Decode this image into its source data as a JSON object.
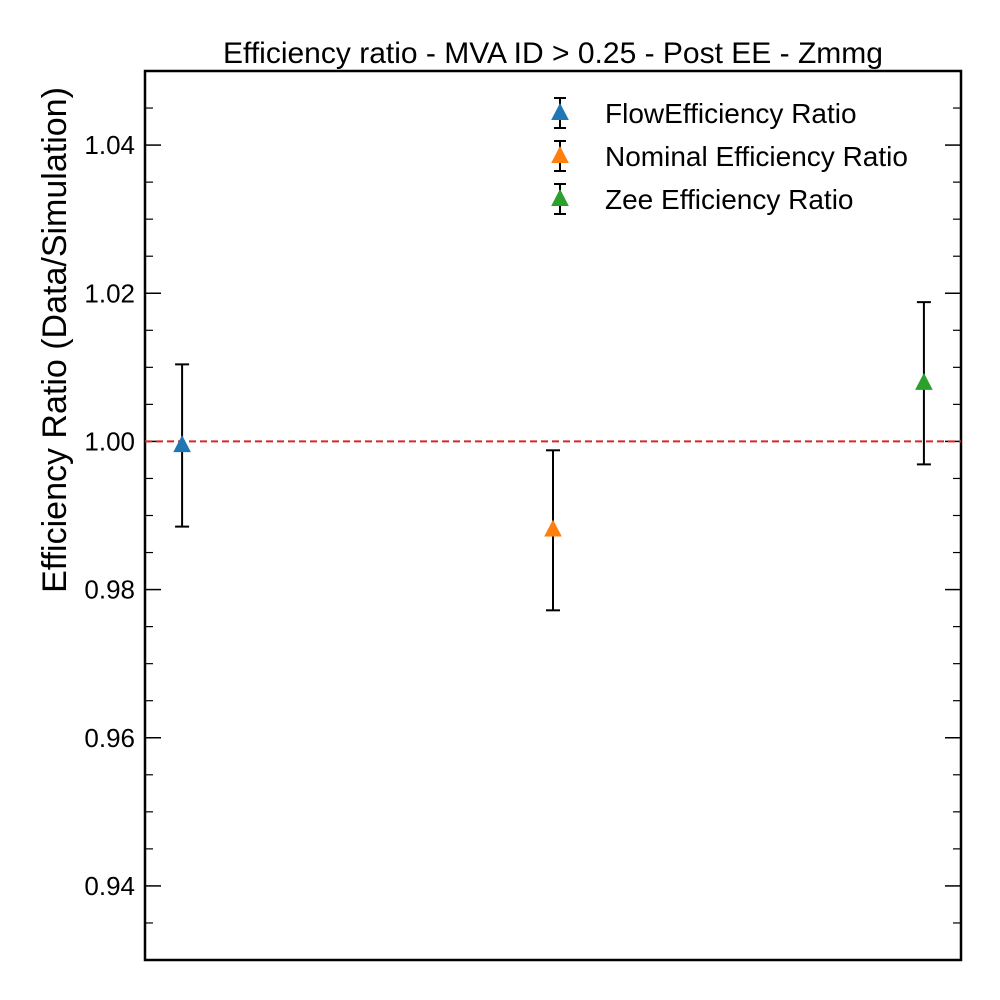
{
  "chart_data": {
    "type": "scatter",
    "title": "Efficiency ratio - MVA ID > 0.25 - Post EE - Zmmg",
    "xlabel": "",
    "ylabel": "Efficiency Ratio (Data/Simulation)",
    "xlim": [
      -0.1,
      2.1
    ],
    "ylim": [
      0.93,
      1.05
    ],
    "yticks": [
      0.94,
      0.96,
      0.98,
      1.0,
      1.02,
      1.04
    ],
    "ytick_labels": [
      "0.94",
      "0.96",
      "0.98",
      "1.00",
      "1.02",
      "1.04"
    ],
    "grid": false,
    "legend_position": "top-right",
    "reference_line": {
      "y": 1.0,
      "color": "#d62728",
      "style": "dashed"
    },
    "series": [
      {
        "name": "FlowEfficiency Ratio",
        "x": 0,
        "y": 0.9995,
        "yerr_low": 0.9885,
        "yerr_high": 1.0104,
        "color": "#1f77b4"
      },
      {
        "name": "Nominal Efficiency Ratio",
        "x": 1,
        "y": 0.9881,
        "yerr_low": 0.9772,
        "yerr_high": 0.9988,
        "color": "#ff7f0e"
      },
      {
        "name": "Zee Efficiency Ratio",
        "x": 2,
        "y": 1.0079,
        "yerr_low": 0.9969,
        "yerr_high": 1.0188,
        "color": "#2ca02c"
      }
    ]
  }
}
